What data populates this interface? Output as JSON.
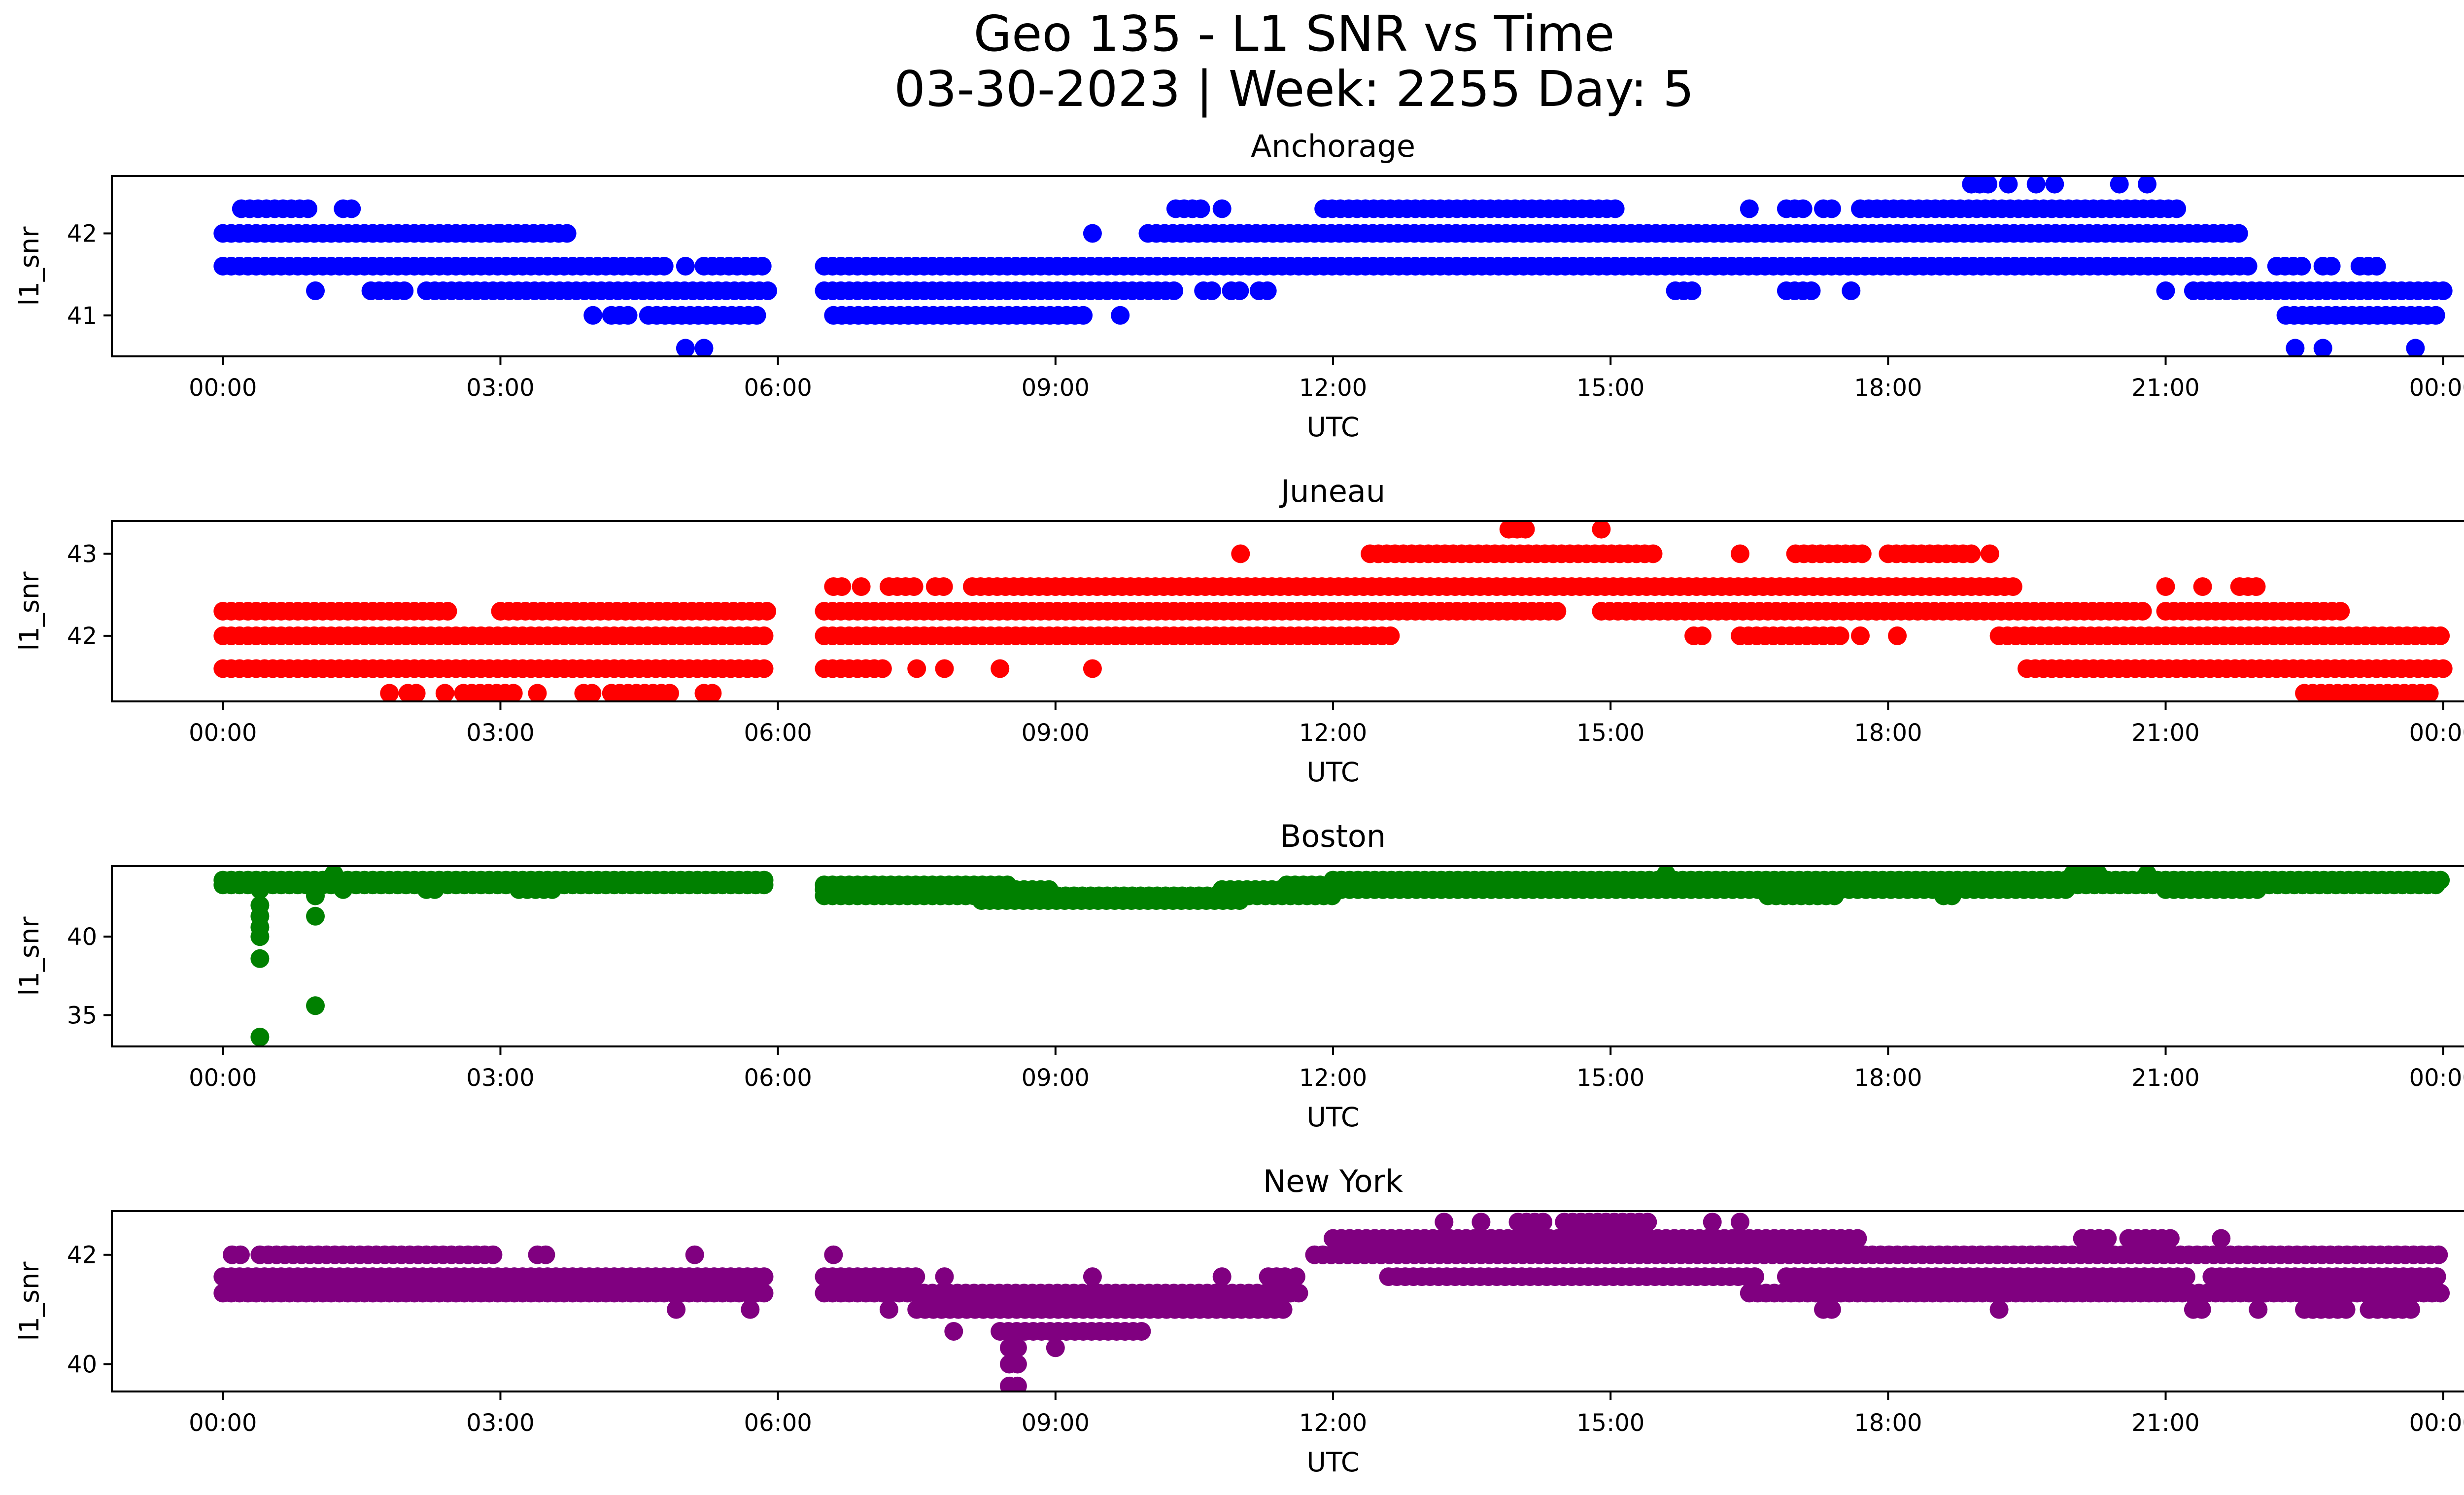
{
  "figure": {
    "title_line1": "Geo 135 - L1 SNR vs Time",
    "title_line2": "03-30-2023 | Week: 2255 Day: 5"
  },
  "chart_data": [
    {
      "type": "scatter",
      "title": "Anchorage",
      "xlabel": "UTC",
      "ylabel": "l1_snr",
      "color": "#0000ff",
      "xlim_hours": [
        -1.2,
        25.2
      ],
      "ylim": [
        40.5,
        42.7
      ],
      "yticks": [
        41,
        42
      ],
      "xticks": [
        "00:00",
        "03:00",
        "06:00",
        "09:00",
        "12:00",
        "15:00",
        "18:00",
        "21:00",
        "00:00"
      ],
      "segments": [
        {
          "y": 42.3,
          "ranges": [
            [
              0.2,
              1.0
            ],
            [
              1.3,
              1.4
            ],
            [
              10.3,
              10.6
            ],
            [
              10.8,
              10.8
            ],
            [
              11.9,
              15.1
            ],
            [
              16.5,
              16.5
            ],
            [
              16.9,
              17.1
            ],
            [
              17.3,
              17.4
            ],
            [
              17.7,
              21.2
            ]
          ]
        },
        {
          "y": 42.6,
          "ranges": [
            [
              18.9,
              19.1
            ],
            [
              19.3,
              19.3
            ],
            [
              19.6,
              19.6
            ],
            [
              19.8,
              19.8
            ],
            [
              20.5,
              20.5
            ],
            [
              20.8,
              20.8
            ]
          ]
        },
        {
          "y": 42.0,
          "ranges": [
            [
              0.0,
              3.0
            ],
            [
              3.0,
              3.8
            ],
            [
              9.4,
              9.4
            ],
            [
              10.0,
              21.8
            ]
          ]
        },
        {
          "y": 41.6,
          "ranges": [
            [
              0.0,
              4.8
            ],
            [
              5.0,
              5.0
            ],
            [
              5.2,
              5.9
            ],
            [
              6.5,
              21.9
            ],
            [
              22.2,
              22.5
            ],
            [
              22.7,
              22.8
            ],
            [
              23.1,
              23.3
            ]
          ]
        },
        {
          "y": 41.3,
          "ranges": [
            [
              1.0,
              1.0
            ],
            [
              1.6,
              2.0
            ],
            [
              2.2,
              5.9
            ],
            [
              6.5,
              10.3
            ],
            [
              10.6,
              10.7
            ],
            [
              10.9,
              11.0
            ],
            [
              11.2,
              11.3
            ],
            [
              15.7,
              15.9
            ],
            [
              16.9,
              17.2
            ],
            [
              17.6,
              17.6
            ],
            [
              21.0,
              21.0
            ],
            [
              21.3,
              24.0
            ]
          ]
        },
        {
          "y": 41.0,
          "ranges": [
            [
              4.0,
              4.0
            ],
            [
              4.2,
              4.4
            ],
            [
              4.6,
              5.8
            ],
            [
              6.6,
              9.3
            ],
            [
              9.7,
              9.7
            ],
            [
              22.3,
              24.0
            ]
          ]
        },
        {
          "y": 40.6,
          "ranges": [
            [
              5.0,
              5.0
            ],
            [
              5.2,
              5.2
            ],
            [
              22.4,
              22.4
            ],
            [
              22.7,
              22.7
            ],
            [
              23.7,
              23.7
            ]
          ]
        }
      ]
    },
    {
      "type": "scatter",
      "title": "Juneau",
      "xlabel": "UTC",
      "ylabel": "l1_snr",
      "color": "#ff0000",
      "xlim_hours": [
        -1.2,
        25.2
      ],
      "ylim": [
        41.2,
        43.4
      ],
      "yticks": [
        42,
        43
      ],
      "xticks": [
        "00:00",
        "03:00",
        "06:00",
        "09:00",
        "12:00",
        "15:00",
        "18:00",
        "21:00",
        "00:00"
      ],
      "segments": [
        {
          "y": 43.3,
          "ranges": [
            [
              13.9,
              14.1
            ],
            [
              14.9,
              14.9
            ]
          ]
        },
        {
          "y": 43.0,
          "ranges": [
            [
              11.0,
              11.0
            ],
            [
              12.4,
              15.5
            ],
            [
              16.4,
              16.4
            ],
            [
              17.0,
              17.8
            ],
            [
              18.0,
              18.9
            ],
            [
              19.1,
              19.1
            ]
          ]
        },
        {
          "y": 42.6,
          "ranges": [
            [
              6.6,
              6.7
            ],
            [
              6.9,
              6.9
            ],
            [
              7.2,
              7.5
            ],
            [
              7.7,
              7.8
            ],
            [
              8.1,
              19.4
            ],
            [
              21.0,
              21.0
            ],
            [
              21.4,
              21.4
            ],
            [
              21.8,
              22.0
            ]
          ]
        },
        {
          "y": 42.3,
          "ranges": [
            [
              0.0,
              2.5
            ],
            [
              3.0,
              5.9
            ],
            [
              6.5,
              14.5
            ],
            [
              14.9,
              20.8
            ],
            [
              21.0,
              22.9
            ]
          ]
        },
        {
          "y": 42.0,
          "ranges": [
            [
              0.0,
              5.9
            ],
            [
              6.5,
              12.7
            ],
            [
              15.9,
              16.0
            ],
            [
              16.4,
              17.5
            ],
            [
              17.7,
              17.7
            ],
            [
              18.1,
              18.1
            ],
            [
              19.2,
              24.0
            ]
          ]
        },
        {
          "y": 41.6,
          "ranges": [
            [
              0.0,
              5.9
            ],
            [
              6.5,
              7.2
            ],
            [
              7.5,
              7.5
            ],
            [
              7.8,
              7.8
            ],
            [
              8.4,
              8.4
            ],
            [
              9.4,
              9.4
            ],
            [
              19.5,
              24.0
            ]
          ]
        },
        {
          "y": 41.3,
          "ranges": [
            [
              1.8,
              1.8
            ],
            [
              2.0,
              2.1
            ],
            [
              2.4,
              2.4
            ],
            [
              2.6,
              3.2
            ],
            [
              3.4,
              3.4
            ],
            [
              3.9,
              4.0
            ],
            [
              4.2,
              4.9
            ],
            [
              5.2,
              5.3
            ],
            [
              22.5,
              23.9
            ]
          ]
        }
      ]
    },
    {
      "type": "scatter",
      "title": "Boston",
      "xlabel": "UTC",
      "ylabel": "l1_snr",
      "color": "#008000",
      "xlim_hours": [
        -1.2,
        25.2
      ],
      "ylim": [
        33.0,
        44.5
      ],
      "yticks": [
        35,
        40
      ],
      "xticks": [
        "00:00",
        "03:00",
        "06:00",
        "09:00",
        "12:00",
        "15:00",
        "18:00",
        "21:00",
        "00:00"
      ],
      "segments": [
        {
          "y": 43.6,
          "ranges": [
            [
              0.0,
              5.9
            ],
            [
              12.0,
              24.0
            ]
          ]
        },
        {
          "y": 43.3,
          "ranges": [
            [
              0.0,
              5.9
            ],
            [
              6.5,
              8.5
            ],
            [
              11.5,
              24.0
            ]
          ]
        },
        {
          "y": 43.0,
          "ranges": [
            [
              0.4,
              0.4
            ],
            [
              1.3,
              1.3
            ],
            [
              2.2,
              2.3
            ],
            [
              3.2,
              3.6
            ],
            [
              6.5,
              9.0
            ],
            [
              10.8,
              11.6
            ],
            [
              12.0,
              20.0
            ],
            [
              21.0,
              22.0
            ]
          ]
        },
        {
          "y": 42.6,
          "ranges": [
            [
              1.0,
              1.0
            ],
            [
              6.5,
              12.0
            ],
            [
              16.7,
              17.5
            ],
            [
              18.6,
              18.7
            ]
          ]
        },
        {
          "y": 42.3,
          "ranges": [
            [
              8.2,
              11.0
            ]
          ]
        },
        {
          "y": 44.0,
          "ranges": [
            [
              1.2,
              1.2
            ],
            [
              15.6,
              15.6
            ],
            [
              20.0,
              20.3
            ],
            [
              20.8,
              20.8
            ]
          ]
        },
        {
          "y": 42.0,
          "ranges": [
            [
              0.4,
              0.4
            ]
          ]
        },
        {
          "y": 41.3,
          "ranges": [
            [
              0.4,
              0.4
            ],
            [
              1.0,
              1.0
            ]
          ]
        },
        {
          "y": 40.6,
          "ranges": [
            [
              0.4,
              0.4
            ]
          ]
        },
        {
          "y": 40.0,
          "ranges": [
            [
              0.4,
              0.4
            ]
          ]
        },
        {
          "y": 38.6,
          "ranges": [
            [
              0.4,
              0.4
            ]
          ]
        },
        {
          "y": 35.6,
          "ranges": [
            [
              1.0,
              1.0
            ]
          ]
        },
        {
          "y": 33.6,
          "ranges": [
            [
              0.4,
              0.4
            ]
          ]
        }
      ]
    },
    {
      "type": "scatter",
      "title": "New York",
      "xlabel": "UTC",
      "ylabel": "l1_snr",
      "color": "#800080",
      "xlim_hours": [
        -1.2,
        25.2
      ],
      "ylim": [
        39.5,
        42.8
      ],
      "yticks": [
        40,
        42
      ],
      "xticks": [
        "00:00",
        "03:00",
        "06:00",
        "09:00",
        "12:00",
        "15:00",
        "18:00",
        "21:00",
        "00:00"
      ],
      "segments": [
        {
          "y": 42.6,
          "ranges": [
            [
              13.2,
              13.2
            ],
            [
              13.6,
              13.6
            ],
            [
              14.0,
              14.3
            ],
            [
              14.5,
              15.4
            ],
            [
              16.1,
              16.1
            ],
            [
              16.4,
              16.4
            ]
          ]
        },
        {
          "y": 42.3,
          "ranges": [
            [
              12.0,
              17.7
            ],
            [
              20.1,
              20.4
            ],
            [
              20.6,
              21.1
            ],
            [
              21.6,
              21.6
            ]
          ]
        },
        {
          "y": 42.0,
          "ranges": [
            [
              0.1,
              0.2
            ],
            [
              0.4,
              3.0
            ],
            [
              3.4,
              3.5
            ],
            [
              5.1,
              5.1
            ],
            [
              6.6,
              6.6
            ],
            [
              11.8,
              24.0
            ]
          ]
        },
        {
          "y": 41.6,
          "ranges": [
            [
              0.0,
              5.9
            ],
            [
              6.5,
              7.5
            ],
            [
              7.8,
              7.8
            ],
            [
              9.4,
              9.4
            ],
            [
              10.8,
              10.8
            ],
            [
              11.3,
              11.5
            ],
            [
              11.6,
              11.6
            ],
            [
              12.6,
              16.6
            ],
            [
              16.9,
              21.3
            ],
            [
              21.5,
              24.0
            ]
          ]
        },
        {
          "y": 41.3,
          "ranges": [
            [
              0.0,
              5.9
            ],
            [
              6.5,
              11.7
            ],
            [
              16.5,
              24.0
            ]
          ]
        },
        {
          "y": 41.0,
          "ranges": [
            [
              4.9,
              4.9
            ],
            [
              5.7,
              5.7
            ],
            [
              7.2,
              7.2
            ],
            [
              7.5,
              11.5
            ],
            [
              17.3,
              17.4
            ],
            [
              19.2,
              19.2
            ],
            [
              21.3,
              21.4
            ],
            [
              22.0,
              22.0
            ],
            [
              22.5,
              23.0
            ],
            [
              23.2,
              23.7
            ]
          ]
        },
        {
          "y": 40.6,
          "ranges": [
            [
              7.9,
              7.9
            ],
            [
              8.4,
              10.0
            ]
          ]
        },
        {
          "y": 40.3,
          "ranges": [
            [
              8.5,
              8.6
            ],
            [
              9.0,
              9.0
            ]
          ]
        },
        {
          "y": 40.0,
          "ranges": [
            [
              8.5,
              8.6
            ]
          ]
        },
        {
          "y": 39.6,
          "ranges": [
            [
              8.5,
              8.6
            ]
          ]
        }
      ]
    }
  ]
}
